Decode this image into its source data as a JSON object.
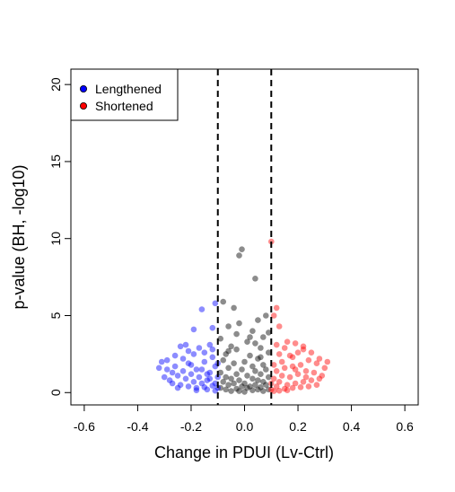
{
  "chart_data": {
    "type": "scatter",
    "title": "",
    "xlabel": "Change in PDUI (Lv-Ctrl)",
    "ylabel": "p-value (BH, -log10)",
    "xlim": [
      -0.65,
      0.65
    ],
    "ylim": [
      -0.8,
      21
    ],
    "xticks": [
      -0.6,
      -0.4,
      -0.2,
      0.0,
      0.2,
      0.4,
      0.6
    ],
    "xtick_labels": [
      "-0.6",
      "-0.4",
      "-0.2",
      "0.0",
      "0.2",
      "0.4",
      "0.6"
    ],
    "yticks": [
      0,
      5,
      10,
      15,
      20
    ],
    "ytick_labels": [
      "0",
      "5",
      "10",
      "15",
      "20"
    ],
    "thresholds": [
      -0.1,
      0.1
    ],
    "legend_position": "top-left",
    "grid": false,
    "series": [
      {
        "name": "Lengthened",
        "color": "#0000ff",
        "points": [
          [
            -0.11,
            5.8
          ],
          [
            -0.12,
            4.2
          ],
          [
            -0.16,
            5.4
          ],
          [
            -0.19,
            4.1
          ],
          [
            -0.22,
            3.1
          ],
          [
            -0.24,
            3.0
          ],
          [
            -0.21,
            2.7
          ],
          [
            -0.17,
            2.9
          ],
          [
            -0.13,
            3.1
          ],
          [
            -0.31,
            2.0
          ],
          [
            -0.32,
            1.6
          ],
          [
            -0.29,
            2.1
          ],
          [
            -0.27,
            1.3
          ],
          [
            -0.26,
            2.4
          ],
          [
            -0.23,
            2.2
          ],
          [
            -0.2,
            1.8
          ],
          [
            -0.18,
            1.5
          ],
          [
            -0.15,
            2.0
          ],
          [
            -0.14,
            1.2
          ],
          [
            -0.12,
            2.3
          ],
          [
            -0.11,
            1.7
          ],
          [
            -0.3,
            1.0
          ],
          [
            -0.28,
            0.8
          ],
          [
            -0.25,
            1.1
          ],
          [
            -0.22,
            0.9
          ],
          [
            -0.19,
            0.7
          ],
          [
            -0.16,
            0.6
          ],
          [
            -0.13,
            0.9
          ],
          [
            -0.1,
            1.0
          ],
          [
            -0.24,
            0.5
          ],
          [
            -0.21,
            0.4
          ],
          [
            -0.18,
            0.3
          ],
          [
            -0.15,
            0.35
          ],
          [
            -0.12,
            0.45
          ],
          [
            -0.1,
            0.3
          ],
          [
            -0.27,
            0.6
          ],
          [
            -0.23,
            1.4
          ],
          [
            -0.2,
            1.2
          ],
          [
            -0.17,
            1.0
          ],
          [
            -0.14,
            0.8
          ],
          [
            -0.11,
            0.6
          ],
          [
            -0.26,
            1.7
          ],
          [
            -0.21,
            1.9
          ],
          [
            -0.16,
            1.5
          ],
          [
            -0.13,
            1.3
          ],
          [
            -0.1,
            1.9
          ],
          [
            -0.19,
            2.5
          ],
          [
            -0.15,
            2.6
          ],
          [
            -0.12,
            2.8
          ],
          [
            -0.18,
            0.15
          ],
          [
            -0.14,
            0.2
          ],
          [
            -0.11,
            0.12
          ],
          [
            -0.25,
            0.3
          ],
          [
            -0.29,
            1.5
          ]
        ]
      },
      {
        "name": "Shortened",
        "color": "#ff0000",
        "points": [
          [
            0.1,
            9.8
          ],
          [
            0.12,
            5.5
          ],
          [
            0.11,
            5.0
          ],
          [
            0.13,
            4.3
          ],
          [
            0.16,
            3.3
          ],
          [
            0.19,
            3.2
          ],
          [
            0.22,
            3.0
          ],
          [
            0.15,
            2.9
          ],
          [
            0.12,
            3.1
          ],
          [
            0.25,
            2.6
          ],
          [
            0.28,
            2.2
          ],
          [
            0.31,
            2.0
          ],
          [
            0.3,
            1.6
          ],
          [
            0.27,
            1.9
          ],
          [
            0.24,
            2.1
          ],
          [
            0.21,
            1.8
          ],
          [
            0.18,
            2.3
          ],
          [
            0.14,
            2.0
          ],
          [
            0.11,
            1.8
          ],
          [
            0.26,
            1.3
          ],
          [
            0.23,
            1.4
          ],
          [
            0.2,
            1.2
          ],
          [
            0.17,
            1.0
          ],
          [
            0.14,
            1.1
          ],
          [
            0.11,
            0.9
          ],
          [
            0.29,
            1.1
          ],
          [
            0.25,
            0.8
          ],
          [
            0.22,
            0.7
          ],
          [
            0.19,
            0.6
          ],
          [
            0.16,
            0.5
          ],
          [
            0.13,
            0.7
          ],
          [
            0.1,
            0.6
          ],
          [
            0.24,
            0.4
          ],
          [
            0.21,
            0.35
          ],
          [
            0.18,
            0.3
          ],
          [
            0.15,
            0.25
          ],
          [
            0.12,
            0.4
          ],
          [
            0.1,
            0.2
          ],
          [
            0.27,
            0.5
          ],
          [
            0.2,
            2.6
          ],
          [
            0.17,
            2.4
          ],
          [
            0.13,
            2.5
          ],
          [
            0.23,
            1.0
          ],
          [
            0.19,
            1.5
          ],
          [
            0.15,
            1.6
          ],
          [
            0.12,
            1.4
          ],
          [
            0.28,
            0.9
          ],
          [
            0.16,
            0.15
          ],
          [
            0.13,
            0.12
          ],
          [
            0.11,
            0.1
          ],
          [
            0.22,
            2.8
          ],
          [
            0.18,
            1.7
          ]
        ]
      },
      {
        "name": "",
        "color": "#000000",
        "points": [
          [
            -0.01,
            9.3
          ],
          [
            -0.02,
            8.9
          ],
          [
            0.04,
            7.4
          ],
          [
            -0.08,
            5.9
          ],
          [
            -0.04,
            5.5
          ],
          [
            0.08,
            5.0
          ],
          [
            0.05,
            4.7
          ],
          [
            -0.06,
            4.3
          ],
          [
            0.03,
            4.0
          ],
          [
            -0.02,
            4.5
          ],
          [
            0.07,
            3.6
          ],
          [
            -0.09,
            3.5
          ],
          [
            0.01,
            3.3
          ],
          [
            -0.05,
            3.0
          ],
          [
            0.06,
            2.9
          ],
          [
            -0.03,
            2.8
          ],
          [
            0.09,
            2.6
          ],
          [
            -0.07,
            2.5
          ],
          [
            0.02,
            2.4
          ],
          [
            0.05,
            2.2
          ],
          [
            -0.08,
            2.1
          ],
          [
            0.0,
            2.0
          ],
          [
            -0.04,
            1.9
          ],
          [
            0.07,
            1.8
          ],
          [
            0.03,
            1.7
          ],
          [
            -0.06,
            1.6
          ],
          [
            0.08,
            1.5
          ],
          [
            -0.01,
            1.5
          ],
          [
            0.04,
            1.4
          ],
          [
            -0.09,
            1.3
          ],
          [
            0.06,
            1.2
          ],
          [
            -0.03,
            1.2
          ],
          [
            0.01,
            1.1
          ],
          [
            -0.07,
            1.0
          ],
          [
            0.09,
            1.0
          ],
          [
            0.03,
            0.9
          ],
          [
            -0.05,
            0.9
          ],
          [
            0.05,
            0.8
          ],
          [
            -0.02,
            0.8
          ],
          [
            0.07,
            0.7
          ],
          [
            -0.08,
            0.7
          ],
          [
            0.0,
            0.6
          ],
          [
            -0.04,
            0.6
          ],
          [
            0.04,
            0.5
          ],
          [
            0.08,
            0.5
          ],
          [
            -0.06,
            0.5
          ],
          [
            0.02,
            0.4
          ],
          [
            -0.01,
            0.4
          ],
          [
            0.06,
            0.35
          ],
          [
            -0.09,
            0.3
          ],
          [
            0.01,
            0.3
          ],
          [
            -0.03,
            0.25
          ],
          [
            0.05,
            0.2
          ],
          [
            -0.07,
            0.2
          ],
          [
            0.09,
            0.2
          ],
          [
            0.03,
            0.15
          ],
          [
            -0.05,
            0.1
          ],
          [
            0.07,
            0.1
          ],
          [
            -0.02,
            0.1
          ],
          [
            0.0,
            0.05
          ],
          [
            0.02,
            3.6
          ],
          [
            -0.03,
            3.8
          ],
          [
            0.04,
            3.2
          ],
          [
            0.09,
            3.9
          ],
          [
            -0.06,
            2.7
          ],
          [
            0.06,
            2.3
          ]
        ]
      }
    ]
  }
}
